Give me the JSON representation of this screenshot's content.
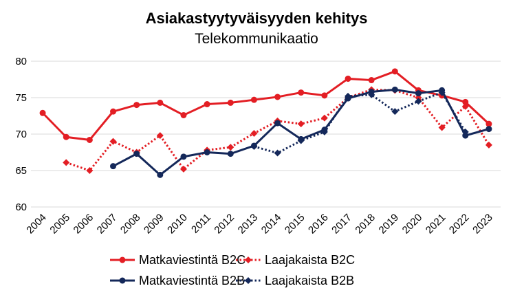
{
  "chart_data": {
    "type": "line",
    "title": "Asiakastyytyväisyyden kehitys",
    "subtitle": "Telekommunikaatio",
    "xlabel": "",
    "ylabel": "",
    "ylim": [
      60,
      80
    ],
    "yticks": [
      "60",
      "65",
      "70",
      "75",
      "80"
    ],
    "categories": [
      "2004",
      "2005",
      "2006",
      "2007",
      "2008",
      "2009",
      "2010",
      "2011",
      "2012",
      "2013",
      "2014",
      "2015",
      "2016",
      "2017",
      "2018",
      "2019",
      "2020",
      "2021",
      "2022",
      "2023"
    ],
    "grid": true,
    "legend_position": "bottom",
    "series": [
      {
        "name": "Matkaviestintä B2C",
        "color": "#e31e24",
        "style": "solid",
        "marker": "circle",
        "values": [
          72.9,
          69.6,
          69.2,
          73.1,
          74.0,
          74.3,
          72.6,
          74.1,
          74.3,
          74.7,
          75.1,
          75.7,
          75.3,
          77.6,
          77.4,
          78.6,
          76.0,
          75.3,
          74.4,
          71.4
        ]
      },
      {
        "name": "Laajakaista B2C",
        "color": "#e31e24",
        "style": "dotted",
        "marker": "diamond",
        "values": [
          null,
          66.1,
          65.0,
          69.0,
          67.5,
          69.8,
          65.2,
          67.8,
          68.2,
          70.1,
          71.8,
          71.4,
          72.2,
          75.0,
          76.1,
          76.0,
          75.0,
          70.9,
          73.8,
          68.5
        ]
      },
      {
        "name": "Matkaviestintä B2B",
        "color": "#14285a",
        "style": "solid",
        "marker": "circle",
        "values": [
          null,
          null,
          null,
          65.6,
          67.3,
          64.4,
          66.9,
          67.5,
          67.3,
          68.4,
          71.5,
          69.3,
          70.6,
          74.9,
          75.8,
          76.1,
          75.6,
          76.0,
          69.8,
          70.7
        ]
      },
      {
        "name": "Laajakaista B2B",
        "color": "#14285a",
        "style": "dotted",
        "marker": "diamond",
        "values": [
          null,
          null,
          null,
          null,
          null,
          null,
          null,
          null,
          null,
          68.3,
          67.4,
          69.1,
          70.3,
          75.2,
          75.4,
          73.1,
          74.5,
          75.7,
          70.3,
          null
        ]
      }
    ]
  }
}
